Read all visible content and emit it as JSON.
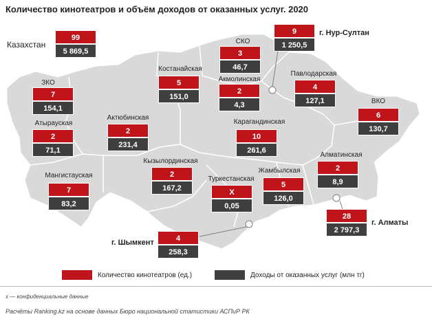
{
  "title": "Количество кинотеатров и объём доходов от оказанных услуг. 2020",
  "chart_data": {
    "type": "table",
    "series": [
      {
        "name": "Количество кинотеатров (ед.)",
        "color": "#c0141b"
      },
      {
        "name": "Доходы от оказанных услуг (млн тг)",
        "color": "#3f3f3f"
      }
    ],
    "regions": [
      {
        "name": "Казахстан",
        "count": "99",
        "revenue": "5 869,5"
      },
      {
        "name": "г. Нур-Султан",
        "count": "9",
        "revenue": "1 250,5"
      },
      {
        "name": "СКО",
        "count": "3",
        "revenue": "46,7"
      },
      {
        "name": "Костанайская",
        "count": "5",
        "revenue": "151,0"
      },
      {
        "name": "Акмолинская",
        "count": "2",
        "revenue": "4,3"
      },
      {
        "name": "Павлодарская",
        "count": "4",
        "revenue": "127,1"
      },
      {
        "name": "ЗКО",
        "count": "7",
        "revenue": "154,1"
      },
      {
        "name": "ВКО",
        "count": "6",
        "revenue": "130,7"
      },
      {
        "name": "Атырауская",
        "count": "2",
        "revenue": "71,1"
      },
      {
        "name": "Актюбинская",
        "count": "2",
        "revenue": "231,4"
      },
      {
        "name": "Карагандинская",
        "count": "10",
        "revenue": "261,6"
      },
      {
        "name": "Алматинская",
        "count": "2",
        "revenue": "8,9"
      },
      {
        "name": "Кызылординская",
        "count": "2",
        "revenue": "167,2"
      },
      {
        "name": "Мангистауская",
        "count": "7",
        "revenue": "83,2"
      },
      {
        "name": "Туркестанская",
        "count": "Х",
        "revenue": "0,05"
      },
      {
        "name": "Жамбылская",
        "count": "5",
        "revenue": "126,0"
      },
      {
        "name": "г. Алматы",
        "count": "28",
        "revenue": "2 797,3"
      },
      {
        "name": "г. Шымкент",
        "count": "4",
        "revenue": "258,3"
      }
    ]
  },
  "note": "х — конфиденциальные данные",
  "source": "Расчёты Ranking.kz на основе данных Бюро национальной  статистики АСПиР РК",
  "colors": {
    "map_fill": "#d9d9d9",
    "map_border": "#ffffff",
    "count": "#c0141b",
    "revenue": "#3f3f3f"
  }
}
